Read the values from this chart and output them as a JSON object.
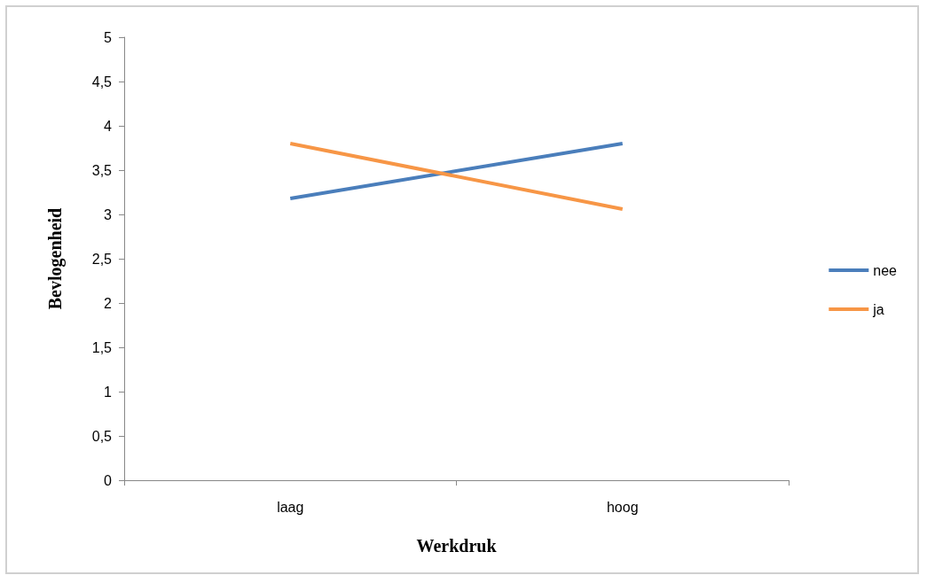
{
  "chart_data": {
    "type": "line",
    "xlabel": "Werkdruk",
    "ylabel": "Bevlogenheid",
    "categories": [
      "laag",
      "hoog"
    ],
    "series": [
      {
        "name": "nee",
        "color": "#4a7ebb",
        "values": [
          3.18,
          3.8
        ]
      },
      {
        "name": "ja",
        "color": "#f79646",
        "values": [
          3.8,
          3.06
        ]
      }
    ],
    "ylim": [
      0,
      5
    ],
    "yticks": [
      0,
      {
        "value": 0.5,
        "label": "0,5"
      },
      1,
      {
        "value": 1.5,
        "label": "1,5"
      },
      2,
      {
        "value": 2.5,
        "label": "2,5"
      },
      3,
      {
        "value": 3.5,
        "label": "3,5"
      },
      4,
      {
        "value": 4.5,
        "label": "4,5"
      },
      5
    ],
    "grid": false,
    "legend": "right",
    "marker": "none",
    "line_style": "solid"
  }
}
